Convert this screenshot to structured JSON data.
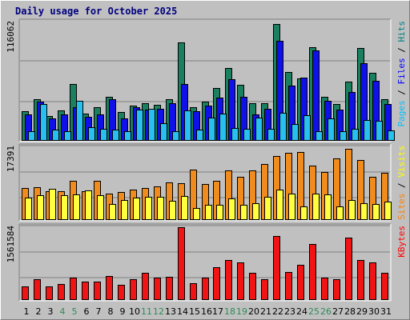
{
  "chart_data": {
    "type": "bar",
    "title": "Daily usage for October 2025",
    "days": [
      "1",
      "2",
      "3",
      "4",
      "5",
      "6",
      "7",
      "8",
      "9",
      "10",
      "11",
      "12",
      "13",
      "14",
      "15",
      "16",
      "17",
      "18",
      "19",
      "20",
      "21",
      "22",
      "23",
      "24",
      "25",
      "26",
      "27",
      "28",
      "29",
      "30",
      "31"
    ],
    "weekend_days": [
      "4",
      "5",
      "11",
      "12",
      "18",
      "19",
      "25",
      "26"
    ],
    "panels": [
      {
        "name": "hits-files-pages",
        "ymax_label": "116062",
        "ymax": 116062,
        "legend": [
          {
            "text": "Pages",
            "color": "#00c0ff"
          },
          {
            "text": " / ",
            "color": "#000000"
          },
          {
            "text": "Files",
            "color": "#0000ff"
          },
          {
            "text": " / ",
            "color": "#000000"
          },
          {
            "text": "Hits",
            "color": "#008080"
          }
        ],
        "series": [
          {
            "name": "Hits",
            "color": "#1a8060",
            "values": [
              29800,
              41200,
              24800,
              30500,
              56600,
              27000,
              33500,
              43800,
              28300,
              35200,
              37100,
              35500,
              41000,
              98000,
              33500,
              38800,
              52500,
              72400,
              55300,
              37500,
              37100,
              117000,
              68500,
              61800,
              92800,
              43800,
              36400,
              58500,
              92200,
              67200,
              41200
            ]
          },
          {
            "name": "Files",
            "color": "#1010e8",
            "values": [
              26500,
              38600,
              22100,
              26500,
              33100,
              23500,
              26500,
              41200,
              22100,
              33200,
              31000,
              32000,
              37500,
              56400,
              29800,
              35200,
              43000,
              61000,
              44000,
              26500,
              32000,
              99000,
              55000,
              63100,
              90000,
              39800,
              31000,
              48600,
              77300,
              59400,
              36400
            ]
          },
          {
            "name": "Pages",
            "color": "#28c0f0",
            "values": [
              9900,
              36800,
              11000,
              9600,
              39700,
              13200,
              12100,
              11000,
              9900,
              30900,
              31800,
              17600,
              9900,
              30000,
              11000,
              23000,
              26700,
              13000,
              11900,
              23200,
              11900,
              27600,
              16600,
              25800,
              9900,
              22100,
              9900,
              11900,
              20800,
              19900,
              10400
            ]
          }
        ]
      },
      {
        "name": "visits-sites",
        "ymax_label": "17391",
        "ymax": 17391,
        "legend": [
          {
            "text": "Sites",
            "color": "#ff8000"
          },
          {
            "text": " / ",
            "color": "#000000"
          },
          {
            "text": "Visits",
            "color": "#ffff00"
          }
        ],
        "series": [
          {
            "name": "Visits",
            "color": "#f08c1e",
            "values": [
              7700,
              7900,
              6800,
              6800,
              9400,
              6800,
              9400,
              6300,
              6600,
              7300,
              7700,
              8100,
              9000,
              8800,
              12000,
              8600,
              9400,
              11800,
              10300,
              11800,
              13300,
              15200,
              16000,
              16200,
              12900,
              11500,
              14700,
              17100,
              14300,
              10300,
              11300
            ]
          },
          {
            "name": "Sites",
            "color": "#ffff40",
            "values": [
              5400,
              5900,
              7400,
              5900,
              6100,
              7000,
              5900,
              3900,
              4700,
              5300,
              5500,
              5500,
              4600,
              5700,
              2900,
              3700,
              3700,
              5100,
              3700,
              4100,
              5500,
              7300,
              6300,
              3300,
              6300,
              6100,
              3300,
              4800,
              4000,
              3900,
              4400
            ]
          }
        ]
      },
      {
        "name": "kbytes",
        "ymax_label": "1561584",
        "ymax": 1561584,
        "legend": [
          {
            "text": "KBytes",
            "color": "#ff0000"
          }
        ],
        "series": [
          {
            "name": "KBytes",
            "color": "#f01414",
            "values": [
              300000,
              450000,
              300000,
              350000,
              475000,
              400000,
              400000,
              511000,
              330000,
              450000,
              575000,
              475000,
              490000,
              1576000,
              363000,
              475000,
              700000,
              864000,
              800000,
              575000,
              450000,
              1376000,
              600000,
              763000,
              1200000,
              475000,
              450000,
              1330000,
              864000,
              800000,
              575000
            ]
          }
        ]
      }
    ]
  }
}
